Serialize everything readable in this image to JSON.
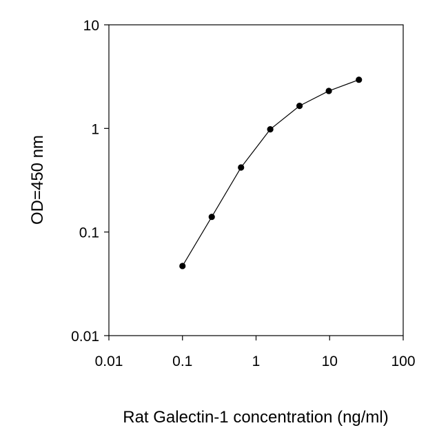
{
  "chart_data": {
    "type": "line",
    "title": "",
    "xlabel": "Rat Galectin-1 concentration (ng/ml)",
    "ylabel": "OD=450 nm",
    "x_scale": "log",
    "y_scale": "log",
    "xlim": [
      0.01,
      100
    ],
    "ylim": [
      0.01,
      10
    ],
    "x_ticks": [
      "0.01",
      "0.1",
      "1",
      "10",
      "100"
    ],
    "y_ticks": [
      "0.01",
      "0.1",
      "1",
      "10"
    ],
    "grid": false,
    "legend": "none",
    "series": [
      {
        "x": [
          0.1,
          0.25,
          0.625,
          1.56,
          3.9,
          9.75,
          25
        ],
        "y": [
          0.047,
          0.14,
          0.42,
          0.98,
          1.65,
          2.3,
          2.95
        ]
      }
    ],
    "colors": {
      "line": "#000000",
      "marker": "#000000",
      "axis": "#000000"
    }
  }
}
